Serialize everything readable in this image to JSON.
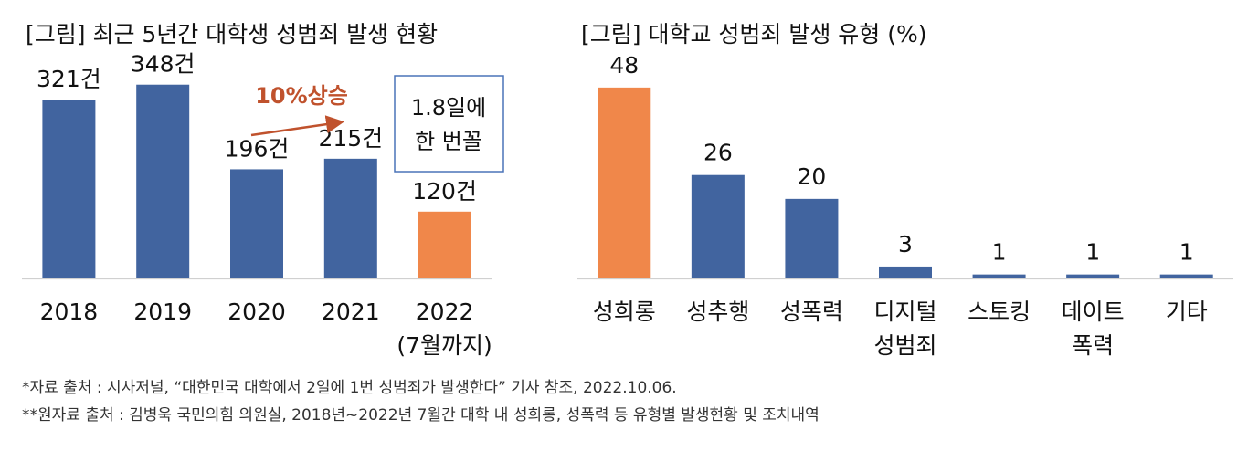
{
  "chart_data": [
    {
      "type": "bar",
      "title": "[그림] 최근 5년간 대학생 성범죄 발생 현황",
      "categories": [
        "2018",
        "2019",
        "2020",
        "2021",
        "2022 (7월까지)"
      ],
      "category_lines": [
        [
          "2018"
        ],
        [
          "2019"
        ],
        [
          "2020"
        ],
        [
          "2021"
        ],
        [
          "2022",
          "(7월까지)"
        ]
      ],
      "values": [
        321,
        348,
        196,
        215,
        120
      ],
      "value_labels": [
        "321건",
        "348건",
        "196건",
        "215건",
        "120건"
      ],
      "highlight_index": 4,
      "ylim": [
        0,
        400
      ],
      "grid": false,
      "annotations": {
        "trend": "10%상승",
        "box_lines": [
          "1.8일에",
          "한 번꼴"
        ]
      }
    },
    {
      "type": "bar",
      "title": "[그림] 대학교 성범죄 발생 유형 (%)",
      "categories": [
        "성희롱",
        "성추행",
        "성폭력",
        "디지털 성범죄",
        "스토킹",
        "데이트 폭력",
        "기타"
      ],
      "category_lines": [
        [
          "성희롱"
        ],
        [
          "성추행"
        ],
        [
          "성폭력"
        ],
        [
          "디지털",
          "성범죄"
        ],
        [
          "스토킹"
        ],
        [
          "데이트",
          "폭력"
        ],
        [
          "기타"
        ]
      ],
      "values": [
        48,
        26,
        20,
        3,
        1,
        1,
        1
      ],
      "value_labels": [
        "48",
        "26",
        "20",
        "3",
        "1",
        "1",
        "1"
      ],
      "highlight_index": 0,
      "ylim": [
        0,
        56
      ],
      "grid": false
    }
  ],
  "colors": {
    "bar": "#41649f",
    "highlight": "#f0874a",
    "trend": "#c0522d",
    "box_border": "#4a73b8",
    "axis": "#d0d0d0"
  },
  "sources": [
    "*자료 출처 : 시사저널, “대한민국 대학에서 2일에 1번 성범죄가 발생한다” 기사 참조, 2022.10.06.",
    "**원자료 출처 : 김병욱 국민의힘 의원실, 2018년~2022년 7월간 대학 내 성희롱, 성폭력 등 유형별 발생현황 및 조치내역"
  ]
}
